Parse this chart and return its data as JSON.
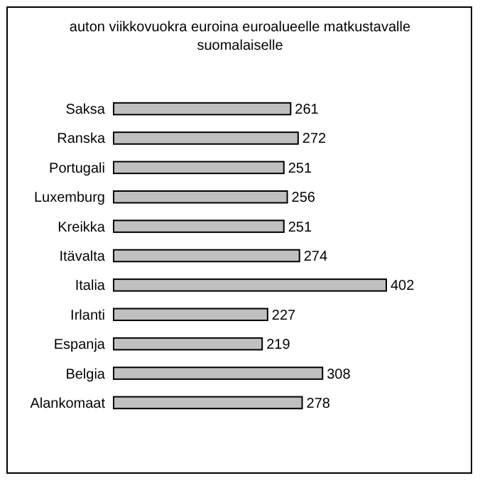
{
  "chart_data": {
    "type": "bar",
    "orientation": "horizontal",
    "title": "auton viikkovuokra euroina euroalueelle matkustavalle suomalaiselle",
    "categories": [
      "Saksa",
      "Ranska",
      "Portugali",
      "Luxemburg",
      "Kreikka",
      "Itävalta",
      "Italia",
      "Irlanti",
      "Espanja",
      "Belgia",
      "Alankomaat"
    ],
    "values": [
      261,
      272,
      251,
      256,
      251,
      274,
      402,
      227,
      219,
      308,
      278
    ],
    "color": "#c0c0c0",
    "data_labels": true
  }
}
